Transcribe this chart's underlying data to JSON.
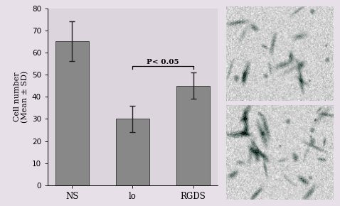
{
  "categories": [
    "NS",
    "lo",
    "RGDS"
  ],
  "values": [
    65,
    30,
    45
  ],
  "errors": [
    9,
    6,
    6
  ],
  "bar_color": "#888888",
  "bar_edgecolor": "#444444",
  "ylim": [
    0,
    80
  ],
  "yticks": [
    0,
    10,
    20,
    30,
    40,
    50,
    60,
    70,
    80
  ],
  "ylabel_line1": "Cell number",
  "ylabel_line2": "(Mean ± SD)",
  "significance_text": "P< 0.05",
  "background_color": "#f0eaf0",
  "figure_background": "#e8e0e8",
  "axis_bg": "#ddd5dd",
  "img_bg_light": 0.82,
  "img_noise_scale": 0.08
}
